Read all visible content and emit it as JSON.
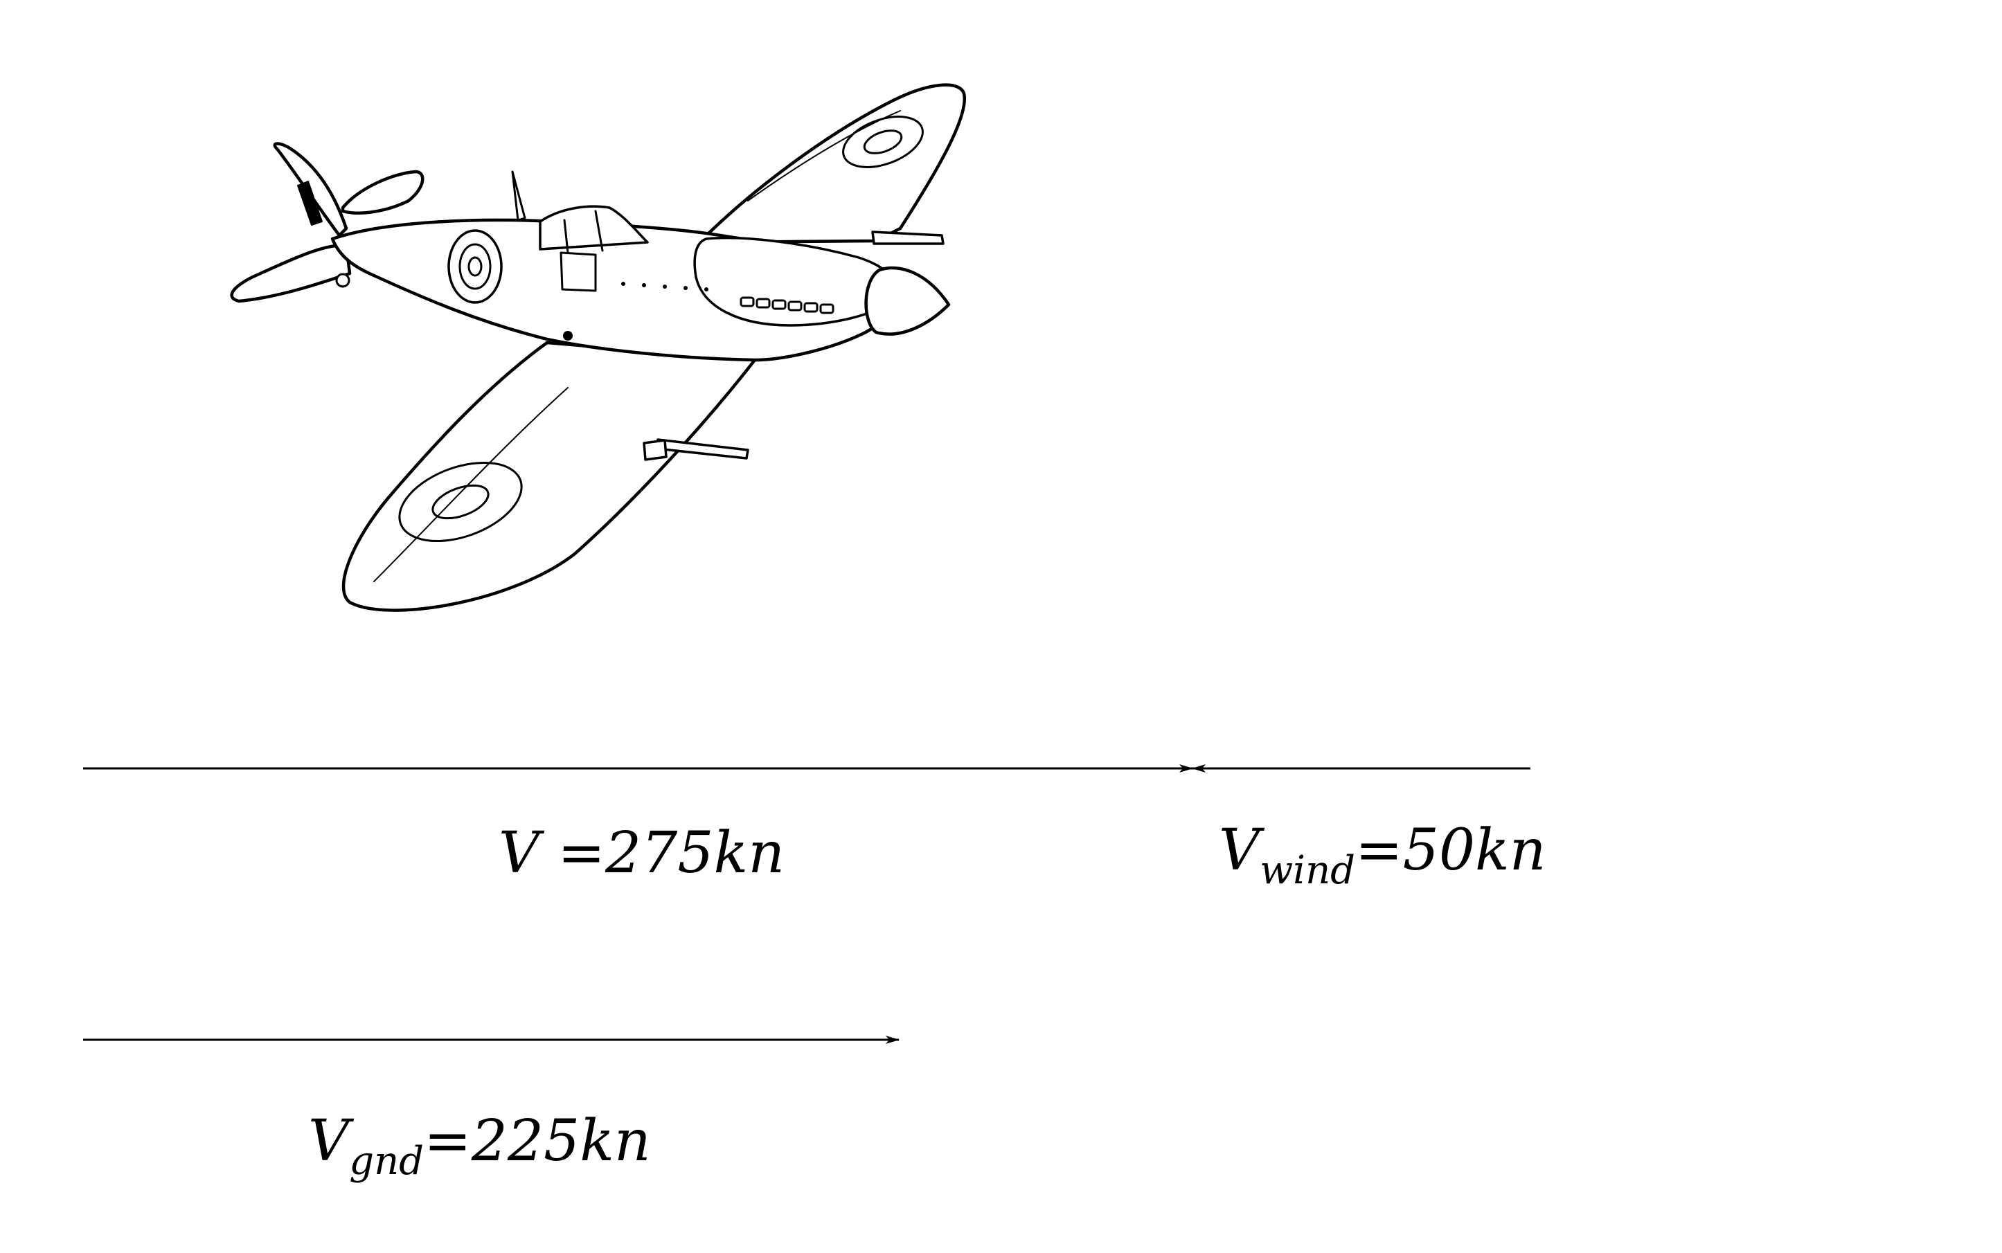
{
  "labels": {
    "airspeed": {
      "symbol": "V",
      "subscript": "",
      "value": "275",
      "unit": "kn"
    },
    "wind": {
      "symbol": "V",
      "subscript": "wind",
      "value": "50",
      "unit": "kn"
    },
    "ground": {
      "symbol": "V",
      "subscript": "gnd",
      "value": "225",
      "unit": "kn"
    }
  },
  "colors": {
    "ink": "#000000",
    "background": "#ffffff"
  },
  "icons": {
    "aircraft": "spitfire-line-drawing"
  }
}
